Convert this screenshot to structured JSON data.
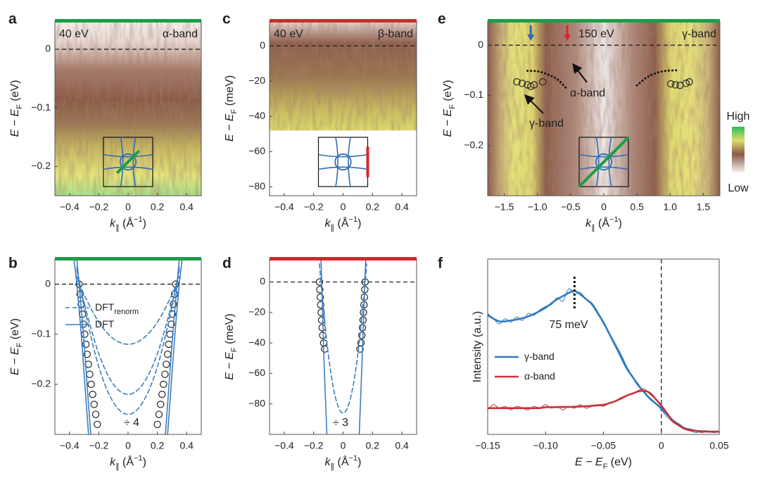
{
  "chart_data": [
    {
      "panel": "a",
      "type": "heatmap",
      "annotations": [
        "40 eV",
        "α-band"
      ],
      "bar_color": "#1e9c4a",
      "inset_cut": "diagonal",
      "xlabel": [
        "k",
        "∥",
        " (Å",
        "−1",
        ")"
      ],
      "xlabel_style": [
        "italic",
        "sub",
        "",
        "sup",
        ""
      ],
      "ylabel": [
        "E − E",
        "F",
        " (eV)"
      ],
      "ylabel_style": [
        "italic",
        "sub",
        ""
      ],
      "xlim": [
        -0.5,
        0.5
      ],
      "ylim": [
        -0.25,
        0.048
      ],
      "xticks": [
        {
          "value": -0.4,
          "label": "−0.4"
        },
        {
          "value": -0.2,
          "label": "−0.2"
        },
        0,
        0.2,
        0.4
      ],
      "yticks": [
        0,
        {
          "value": -0.1,
          "label": "−0.1"
        },
        {
          "value": -0.2,
          "label": "−0.2"
        }
      ],
      "hline": 0
    },
    {
      "panel": "b",
      "type": "line",
      "annotations": [
        "÷ 4"
      ],
      "bar_color": "#1e9c4a",
      "xlabel": [
        "k",
        "∥",
        " (Å",
        "−1",
        ")"
      ],
      "xlabel_style": [
        "italic",
        "sub",
        "",
        "sup",
        ""
      ],
      "ylabel": [
        "E − E",
        "F",
        " (eV)"
      ],
      "ylabel_style": [
        "italic",
        "sub",
        ""
      ],
      "xlim": [
        -0.5,
        0.5
      ],
      "ylim": [
        -0.3,
        0.05
      ],
      "xticks": [
        {
          "value": -0.4,
          "label": "−0.4"
        },
        {
          "value": -0.2,
          "label": "−0.2"
        },
        0,
        0.2,
        0.4
      ],
      "yticks": [
        0,
        {
          "value": -0.1,
          "label": "−0.1"
        },
        {
          "value": -0.2,
          "label": "−0.2"
        }
      ],
      "hline": 0,
      "series": [
        {
          "style": "markers",
          "color": "#222222",
          "x": [
            -0.335,
            -0.328,
            -0.32,
            -0.312,
            -0.305,
            -0.296,
            -0.288,
            -0.28,
            -0.271,
            -0.262,
            -0.252,
            -0.242,
            -0.232,
            -0.221,
            -0.21,
            0.325,
            0.318,
            0.31,
            0.302,
            0.295,
            0.286,
            0.278,
            0.27,
            0.261,
            0.252,
            0.242,
            0.232,
            0.222,
            0.211,
            0.2
          ],
          "values": [
            0,
            -0.02,
            -0.04,
            -0.06,
            -0.08,
            -0.1,
            -0.12,
            -0.14,
            -0.16,
            -0.18,
            -0.2,
            -0.22,
            -0.24,
            -0.26,
            -0.28,
            0,
            -0.02,
            -0.04,
            -0.06,
            -0.08,
            -0.1,
            -0.12,
            -0.14,
            -0.16,
            -0.18,
            -0.2,
            -0.22,
            -0.24,
            -0.26,
            -0.28
          ]
        },
        {
          "name": "DFT",
          "name_sub": "renorm",
          "style": "dashed",
          "color": "#3a7ec1",
          "x": [
            -0.35,
            -0.3,
            -0.2,
            -0.1,
            0,
            0.1,
            0.2,
            0.3,
            0.35,
            null,
            -0.35,
            -0.3,
            -0.2,
            -0.1,
            0,
            0.1,
            0.2,
            0.3,
            0.35,
            null,
            -0.35,
            -0.3,
            -0.2,
            -0.1,
            0,
            0.1,
            0.2,
            0.3,
            0.35
          ],
          "values": [
            0.015,
            -0.021,
            -0.076,
            -0.109,
            -0.12,
            -0.109,
            -0.076,
            -0.021,
            0.015,
            null,
            0.028,
            -0.038,
            -0.139,
            -0.2,
            -0.22,
            -0.2,
            -0.139,
            -0.038,
            0.028,
            null,
            0.033,
            -0.045,
            -0.165,
            -0.236,
            -0.26,
            -0.236,
            -0.165,
            -0.045,
            0.033
          ]
        },
        {
          "name": "DFT",
          "style": "solid",
          "color": "#3a7ec1",
          "x": [
            -0.37,
            -0.35,
            -0.32,
            -0.295,
            -0.27,
            null,
            -0.35,
            -0.335,
            -0.305,
            -0.28,
            -0.255,
            null,
            0.37,
            0.35,
            0.32,
            0.295,
            0.27,
            null,
            0.35,
            0.335,
            0.305,
            0.28,
            0.255
          ],
          "values": [
            0.05,
            0,
            -0.1,
            -0.2,
            -0.3,
            null,
            0.05,
            0,
            -0.1,
            -0.2,
            -0.3,
            null,
            0.05,
            0,
            -0.1,
            -0.2,
            -0.3,
            null,
            0.05,
            0,
            -0.1,
            -0.2,
            -0.3
          ]
        }
      ]
    },
    {
      "panel": "c",
      "type": "heatmap",
      "annotations": [
        "40 eV",
        "β-band"
      ],
      "bar_color": "#d8262e",
      "inset_cut": "edge",
      "map_bottom": -48,
      "xlabel": [
        "k",
        "∥",
        " (Å",
        "−1",
        ")"
      ],
      "xlabel_style": [
        "italic",
        "sub",
        "",
        "sup",
        ""
      ],
      "ylabel": [
        "E − E",
        "F",
        " (meV)"
      ],
      "ylabel_style": [
        "italic",
        "sub",
        ""
      ],
      "xlim": [
        -0.5,
        0.5
      ],
      "ylim": [
        -85,
        14
      ],
      "xticks": [
        {
          "value": -0.4,
          "label": "−0.4"
        },
        {
          "value": -0.2,
          "label": "−0.2"
        },
        0,
        0.2,
        0.4
      ],
      "yticks": [
        0,
        {
          "value": -20,
          "label": "−20"
        },
        {
          "value": -40,
          "label": "−40"
        },
        {
          "value": -60,
          "label": "−60"
        },
        {
          "value": -80,
          "label": "−80"
        }
      ],
      "hline": 0
    },
    {
      "panel": "d",
      "type": "line",
      "annotations": [
        "÷ 3"
      ],
      "bar_color": "#d8262e",
      "xlabel": [
        "k",
        "∥",
        " (Å",
        "−1",
        ")"
      ],
      "xlabel_style": [
        "italic",
        "sub",
        "",
        "sup",
        ""
      ],
      "ylabel": [
        "E − E",
        "F",
        " (meV)"
      ],
      "ylabel_style": [
        "italic",
        "sub",
        ""
      ],
      "xlim": [
        -0.5,
        0.5
      ],
      "ylim": [
        -100,
        15
      ],
      "xticks": [
        {
          "value": -0.4,
          "label": "−0.4"
        },
        {
          "value": -0.2,
          "label": "−0.2"
        },
        0,
        0.2,
        0.4
      ],
      "yticks": [
        0,
        {
          "value": -20,
          "label": "−20"
        },
        {
          "value": -40,
          "label": "−40"
        },
        {
          "value": -60,
          "label": "−60"
        },
        {
          "value": -80,
          "label": "−80"
        }
      ],
      "hline": 0,
      "series": [
        {
          "style": "markers",
          "color": "#222222",
          "x": [
            -0.16,
            -0.158,
            -0.155,
            -0.152,
            -0.149,
            -0.146,
            -0.142,
            -0.138,
            -0.132,
            -0.125,
            0.15,
            0.148,
            0.145,
            0.142,
            0.139,
            0.136,
            0.132,
            0.128,
            0.122,
            0.115
          ],
          "values": [
            0,
            -5,
            -10,
            -15,
            -20,
            -25,
            -30,
            -35,
            -40,
            -44,
            0,
            -5,
            -10,
            -15,
            -20,
            -25,
            -30,
            -35,
            -40,
            -44
          ]
        },
        {
          "style": "dashed",
          "color": "#3a7ec1",
          "x": [
            -0.16,
            -0.15,
            -0.1,
            -0.05,
            0,
            0.05,
            0.1,
            0.15,
            0.16
          ],
          "values": [
            11.9,
            0,
            -47.8,
            -76.4,
            -86,
            -76.4,
            -47.8,
            0,
            11.9
          ]
        },
        {
          "style": "solid",
          "color": "#3a7ec1",
          "x": [
            -0.15,
            -0.145,
            -0.13,
            -0.11,
            null,
            0.155,
            0.148,
            0.13,
            0.11
          ],
          "values": [
            15,
            0,
            -50,
            -100,
            null,
            15,
            0,
            -50,
            -100
          ]
        }
      ]
    },
    {
      "panel": "e",
      "type": "heatmap",
      "annotations": [
        "150 eV",
        "γ-band",
        "α-band",
        "γ-band"
      ],
      "bar_color": "#1e9c4a",
      "inset_cut": "full-diagonal",
      "colorbar": {
        "high": "High",
        "low": "Low"
      },
      "arrows": [
        {
          "x": -1.1,
          "color": "#2f6db5"
        },
        {
          "x": -0.55,
          "color": "#d8262e"
        }
      ],
      "xlabel": [
        "k",
        "∥",
        " (Å",
        "−1",
        ")"
      ],
      "xlabel_style": [
        "italic",
        "sub",
        "",
        "sup",
        ""
      ],
      "ylabel": [
        "E − E",
        "F",
        " (eV)"
      ],
      "ylabel_style": [
        "italic",
        "sub",
        ""
      ],
      "xlim": [
        -1.75,
        1.75
      ],
      "ylim": [
        -0.3,
        0.048
      ],
      "xticks": [
        {
          "value": -1.5,
          "label": "−1.5"
        },
        {
          "value": -1,
          "label": "−1.0"
        },
        {
          "value": -0.5,
          "label": "−0.5"
        },
        0,
        0.5,
        {
          "value": 1,
          "label": "1.0"
        },
        1.5
      ],
      "yticks": [
        0,
        {
          "value": -0.1,
          "label": "−0.1"
        },
        {
          "value": -0.2,
          "label": "−0.2"
        }
      ],
      "hline": 0,
      "series": [
        {
          "style": "markers",
          "color": "#222222",
          "x": [
            -1.31,
            -1.23,
            -1.15,
            -1.1,
            -1.05,
            -0.92,
            1.01,
            1.08,
            1.15,
            1.24,
            1.29
          ],
          "values": [
            -0.073,
            -0.076,
            -0.079,
            -0.082,
            -0.079,
            -0.073,
            -0.077,
            -0.079,
            -0.08,
            -0.076,
            -0.073
          ]
        },
        {
          "style": "dotted",
          "color": "#111111",
          "x": [
            -1.15,
            -1.0,
            -0.85,
            -0.7,
            -0.57,
            null,
            0.5,
            0.65,
            0.8,
            0.95,
            1.1
          ],
          "values": [
            -0.051,
            -0.052,
            -0.058,
            -0.068,
            -0.085,
            null,
            -0.08,
            -0.064,
            -0.055,
            -0.051,
            -0.05
          ]
        }
      ]
    },
    {
      "panel": "f",
      "type": "line",
      "annotations": [
        "75 meV"
      ],
      "marker_x": -0.075,
      "vline": 0,
      "xlabel": [
        "E − E",
        "F",
        " (eV)"
      ],
      "xlabel_style": [
        "italic",
        "sub",
        ""
      ],
      "ylabel": [
        "Intensity (a.u.)"
      ],
      "ylabel_style": [
        ""
      ],
      "xlim": [
        -0.15,
        0.05
      ],
      "ylim": [
        0,
        1
      ],
      "xticks": [
        {
          "value": -0.15,
          "label": "−0.15"
        },
        {
          "value": -0.1,
          "label": "−0.10"
        },
        {
          "value": -0.05,
          "label": "−0.05"
        },
        0,
        0.05
      ],
      "x": [
        -0.15,
        -0.145,
        -0.14,
        -0.135,
        -0.13,
        -0.125,
        -0.12,
        -0.115,
        -0.11,
        -0.105,
        -0.1,
        -0.095,
        -0.09,
        -0.085,
        -0.08,
        -0.075,
        -0.07,
        -0.065,
        -0.06,
        -0.055,
        -0.05,
        -0.045,
        -0.04,
        -0.035,
        -0.03,
        -0.025,
        -0.02,
        -0.015,
        -0.01,
        -0.005,
        0,
        0.005,
        0.01,
        0.015,
        0.02,
        0.025,
        0.03,
        0.035,
        0.04,
        0.045,
        0.05
      ],
      "series": [
        {
          "name": "γ-band",
          "style": "solid",
          "color": "#2f7bbf",
          "values": [
            0.68,
            0.66,
            0.645,
            0.645,
            0.65,
            0.655,
            0.663,
            0.673,
            0.687,
            0.704,
            0.723,
            0.747,
            0.771,
            0.789,
            0.807,
            0.819,
            0.799,
            0.772,
            0.743,
            0.693,
            0.639,
            0.575,
            0.51,
            0.444,
            0.378,
            0.33,
            0.281,
            0.243,
            0.205,
            0.177,
            0.149,
            0.114,
            0.08,
            0.058,
            0.036,
            0.028,
            0.02,
            0.018,
            0.016,
            0.016,
            0.016
          ],
          "raw_values": [
            0.69,
            0.66,
            0.63,
            0.66,
            0.64,
            0.67,
            0.65,
            0.69,
            0.68,
            0.71,
            0.73,
            0.74,
            0.78,
            0.76,
            0.83,
            0.8,
            0.81,
            0.77,
            0.75,
            0.7,
            0.63,
            0.58,
            0.52,
            0.46,
            0.39,
            0.33,
            0.29,
            0.24,
            0.21,
            0.18,
            0.14,
            0.1,
            0.07,
            0.05,
            0.03,
            0.02,
            0.01,
            0.02,
            0.02,
            0.01,
            0.015
          ]
        },
        {
          "name": "α-band",
          "style": "solid",
          "color": "#c7323a",
          "values": [
            0.15,
            0.15,
            0.15,
            0.15,
            0.15,
            0.15,
            0.15,
            0.15,
            0.15,
            0.15,
            0.155,
            0.155,
            0.156,
            0.157,
            0.157,
            0.158,
            0.159,
            0.161,
            0.163,
            0.166,
            0.169,
            0.178,
            0.189,
            0.204,
            0.221,
            0.233,
            0.245,
            0.249,
            0.237,
            0.203,
            0.165,
            0.12,
            0.076,
            0.052,
            0.032,
            0.025,
            0.02,
            0.018,
            0.016,
            0.016,
            0.016
          ],
          "raw_values": [
            0.14,
            0.17,
            0.15,
            0.16,
            0.14,
            0.16,
            0.15,
            0.14,
            0.16,
            0.15,
            0.17,
            0.15,
            0.16,
            0.14,
            0.16,
            0.15,
            0.17,
            0.15,
            0.16,
            0.17,
            0.16,
            0.18,
            0.19,
            0.21,
            0.22,
            0.23,
            0.25,
            0.26,
            0.23,
            0.2,
            0.16,
            0.12,
            0.08,
            0.05,
            0.03,
            0.02,
            0.02,
            0.01,
            0.02,
            0.015,
            0.015
          ]
        }
      ]
    }
  ]
}
